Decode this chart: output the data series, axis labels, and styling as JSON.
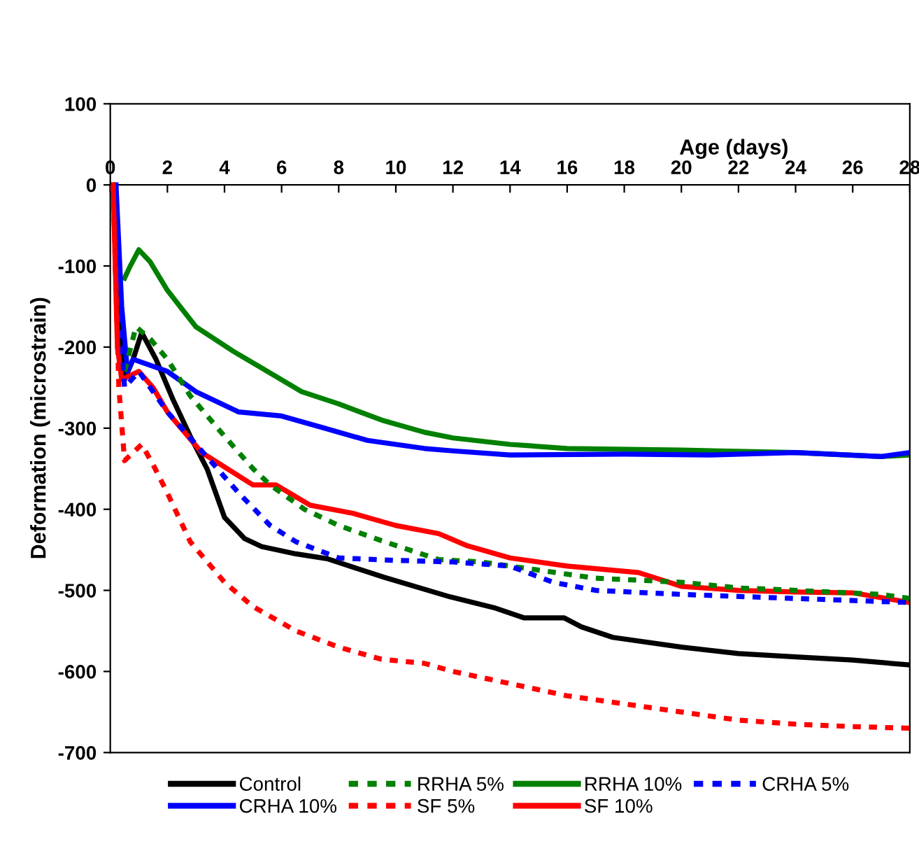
{
  "chart_data": {
    "type": "line",
    "xlabel": "Age (days)",
    "ylabel": "Deformation (microstrain)",
    "xlim": [
      0,
      28
    ],
    "xticks": [
      0,
      2,
      4,
      6,
      8,
      10,
      12,
      14,
      16,
      18,
      20,
      22,
      24,
      26,
      28
    ],
    "ylim": [
      -700,
      100
    ],
    "yticks": [
      -700,
      -600,
      -500,
      -400,
      -300,
      -200,
      -100,
      0,
      100
    ],
    "grid": false,
    "legend": "bottom",
    "marker": "none",
    "series": [
      {
        "name": "Control",
        "color": "#000000",
        "line_style": "solid",
        "x": [
          0.1,
          0.3,
          0.5,
          0.8,
          1.1,
          1.6,
          2.2,
          2.8,
          3.4,
          4.0,
          4.7,
          5.3,
          6.5,
          7.6,
          9.6,
          11.9,
          13.5,
          14.5,
          15.9,
          16.5,
          17.6,
          20,
          22,
          24,
          26,
          28
        ],
        "values": [
          0,
          -150,
          -240,
          -215,
          -182,
          -215,
          -265,
          -310,
          -351,
          -410,
          -436,
          -446,
          -455,
          -461,
          -484,
          -508,
          -522,
          -534,
          -534,
          -545,
          -558,
          -570,
          -578,
          -582,
          -586,
          -592
        ]
      },
      {
        "name": "RRHA 5%",
        "color": "#008000",
        "line_style": "dashed",
        "x": [
          0.5,
          0.9,
          1.4,
          2.0,
          2.8,
          4.0,
          5.0,
          5.6,
          6.8,
          8.0,
          9.6,
          11.5,
          13,
          15,
          17,
          20,
          22,
          24,
          27,
          28
        ],
        "values": [
          -230,
          -175,
          -190,
          -215,
          -260,
          -310,
          -350,
          -370,
          -400,
          -420,
          -440,
          -462,
          -465,
          -475,
          -485,
          -490,
          -497,
          -500,
          -505,
          -510
        ]
      },
      {
        "name": "RRHA 10%",
        "color": "#008000",
        "line_style": "solid",
        "x": [
          0.5,
          0.7,
          1.0,
          1.4,
          2.0,
          3.0,
          4.3,
          5.5,
          6.7,
          8.0,
          9.5,
          11,
          12,
          14,
          16,
          20,
          24,
          27,
          28
        ],
        "values": [
          -115,
          -100,
          -80,
          -95,
          -130,
          -175,
          -205,
          -230,
          -255,
          -270,
          -290,
          -305,
          -312,
          -320,
          -325,
          -327,
          -330,
          -335,
          -333
        ]
      },
      {
        "name": "CRHA 5%",
        "color": "#0000ff",
        "line_style": "dashed",
        "x": [
          0.1,
          0.3,
          0.5,
          1.0,
          2.0,
          3.0,
          4.5,
          5.6,
          6.5,
          8,
          10,
          12,
          14,
          15.5,
          17,
          20,
          24,
          28
        ],
        "values": [
          0,
          -150,
          -250,
          -230,
          -280,
          -320,
          -380,
          -420,
          -440,
          -460,
          -463,
          -465,
          -470,
          -490,
          -500,
          -505,
          -510,
          -515
        ]
      },
      {
        "name": "CRHA 10%",
        "color": "#0000ff",
        "line_style": "solid",
        "x": [
          0.2,
          0.4,
          0.6,
          0.8,
          2.0,
          3.0,
          4.5,
          6.0,
          7.5,
          9,
          11,
          12,
          14,
          18,
          21,
          24,
          27,
          28
        ],
        "values": [
          0,
          -150,
          -230,
          -215,
          -230,
          -255,
          -280,
          -285,
          -300,
          -315,
          -325,
          -328,
          -333,
          -332,
          -333,
          -330,
          -335,
          -330
        ]
      },
      {
        "name": "SF 5%",
        "color": "#ff0000",
        "line_style": "dashed",
        "x": [
          0.1,
          0.3,
          0.5,
          0.8,
          1.1,
          1.5,
          2.0,
          2.8,
          4.0,
          5.0,
          6.5,
          8,
          9.5,
          11,
          12,
          14,
          16,
          18,
          20,
          22,
          24,
          26,
          28
        ],
        "values": [
          0,
          -250,
          -340,
          -330,
          -320,
          -345,
          -380,
          -440,
          -490,
          -520,
          -550,
          -570,
          -585,
          -590,
          -600,
          -615,
          -630,
          -640,
          -650,
          -660,
          -665,
          -668,
          -670
        ]
      },
      {
        "name": "SF 10%",
        "color": "#ff0000",
        "line_style": "solid",
        "x": [
          0.1,
          0.25,
          0.4,
          0.7,
          1.0,
          1.5,
          2.0,
          3.2,
          5.0,
          5.8,
          7.0,
          8.5,
          10,
          11.5,
          12.5,
          14,
          16,
          18.5,
          20,
          22,
          24,
          26,
          28
        ],
        "values": [
          0,
          -200,
          -240,
          -235,
          -230,
          -250,
          -280,
          -330,
          -370,
          -370,
          -395,
          -405,
          -420,
          -430,
          -445,
          -460,
          -470,
          -478,
          -495,
          -500,
          -502,
          -503,
          -515
        ]
      }
    ]
  }
}
